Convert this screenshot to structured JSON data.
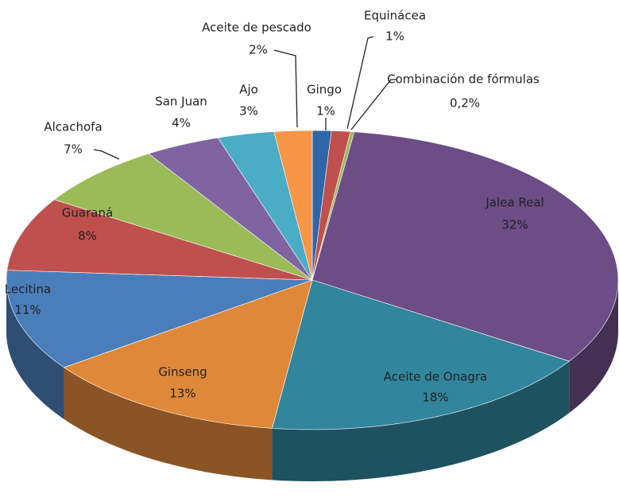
{
  "chart_data": {
    "type": "pie3d",
    "categories": [
      "Gingo",
      "Equinácea",
      "Combinación de fórmulas",
      "Jalea Real",
      "Aceite de Onagra",
      "Ginseng",
      "Lecitina",
      "Guaraná",
      "Alcachofa",
      "San Juan",
      "Ajo",
      "Aceite de pescado"
    ],
    "values": [
      1,
      1,
      0.2,
      32,
      18,
      13,
      11,
      8,
      7,
      4,
      3,
      2
    ],
    "value_labels": [
      "1%",
      "1%",
      "0,2%",
      "32%",
      "18%",
      "13%",
      "11%",
      "8%",
      "7%",
      "4%",
      "3%",
      "2%"
    ],
    "colors": [
      "#2f66a8",
      "#c0504d",
      "#9bbb59",
      "#6c4d86",
      "#31859c",
      "#e0883a",
      "#4a7ebb",
      "#c0504d",
      "#9bbb59",
      "#8064a2",
      "#4bacc6",
      "#f79646"
    ]
  }
}
